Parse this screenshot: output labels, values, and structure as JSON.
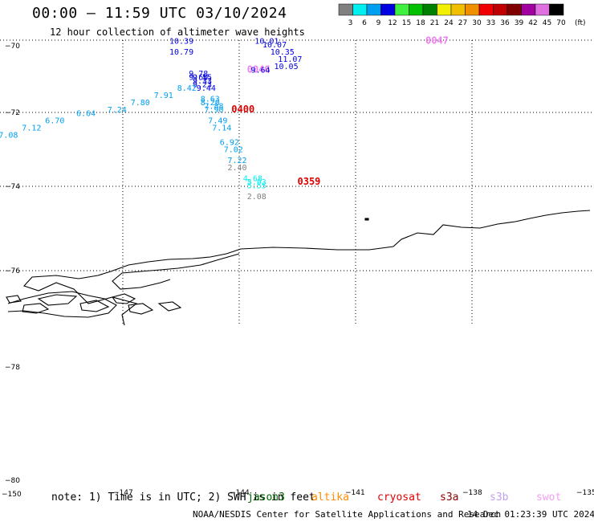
{
  "header": {
    "title": "00:00 — 11:59 UTC 03/10/2024",
    "subtitle": "12 hour collection of altimeter wave heights"
  },
  "colorbar": {
    "labels": [
      "3",
      "6",
      "9",
      "12",
      "15",
      "18",
      "21",
      "24",
      "27",
      "30",
      "33",
      "36",
      "39",
      "42",
      "45",
      "70"
    ],
    "colors": [
      "#808080",
      "#00f0f0",
      "#00a0f0",
      "#0000e0",
      "#40f040",
      "#00c000",
      "#008000",
      "#f0f000",
      "#f0c000",
      "#f09000",
      "#f00000",
      "#c00000",
      "#800000",
      "#a000a0",
      "#e070e0",
      "#000000"
    ],
    "unit": "(ft)"
  },
  "footer": {
    "note": "note: 1) Time is in UTC; 2) SWH is in feet",
    "satellites": [
      {
        "name": "jason3",
        "color": "#006400"
      },
      {
        "name": "altika",
        "color": "#ff8c00"
      },
      {
        "name": "cryosat",
        "color": "#e00000"
      },
      {
        "name": "s3a",
        "color": "#8b0000"
      },
      {
        "name": "s3b",
        "color": "#c0a0f0"
      },
      {
        "name": "swot",
        "color": "#f0a0f0"
      }
    ],
    "credit": "NOAA/NESDIS Center for Satellite Applications and Research",
    "timestamp": "14 Dec 01:23:39 UTC 2024"
  },
  "chart_data": {
    "type": "scatter",
    "title": "00:00 — 11:59 UTC 03/10/2024",
    "subtitle": "12 hour collection of altimeter wave heights",
    "x_ticks": [
      "−147",
      "−144",
      "−141",
      "−138",
      "−135"
    ],
    "x_ticks_outer": [
      "−150"
    ],
    "y_ticks": [
      "−70",
      "−72",
      "−74",
      "−76",
      "−78",
      "−80"
    ],
    "grid": true,
    "series": [
      {
        "name": "swot",
        "color": "#f080f0",
        "points": [
          {
            "lon": -139.2,
            "lat": -70.1,
            "label": "0047"
          },
          {
            "lon": -143.8,
            "lat": -70.9,
            "label": "0046"
          }
        ]
      },
      {
        "name": "cryosat",
        "color": "#e00000",
        "points": [
          {
            "lon": -144.2,
            "lat": -72.0,
            "label": "0400"
          },
          {
            "lon": -142.5,
            "lat": -74.0,
            "label": "0359"
          }
        ]
      },
      {
        "name": "swh-values",
        "color": "#000000",
        "points": [
          {
            "lon": -143.6,
            "lat": -70.1,
            "swh": 10.01
          },
          {
            "lon": -143.4,
            "lat": -70.2,
            "swh": 10.07
          },
          {
            "lon": -143.2,
            "lat": -70.4,
            "swh": 10.35
          },
          {
            "lon": -143.0,
            "lat": -70.6,
            "swh": 11.07
          },
          {
            "lon": -143.1,
            "lat": -70.8,
            "swh": 10.05
          },
          {
            "lon": -143.7,
            "lat": -70.9,
            "swh": 9.64
          },
          {
            "lon": -145.8,
            "lat": -70.1,
            "swh": 10.39
          },
          {
            "lon": -145.8,
            "lat": -70.4,
            "swh": 10.79
          },
          {
            "lon": -145.3,
            "lat": -71.0,
            "swh": 9.78
          },
          {
            "lon": -145.3,
            "lat": -71.1,
            "swh": 9.6
          },
          {
            "lon": -145.2,
            "lat": -71.1,
            "swh": 9.55
          },
          {
            "lon": -145.2,
            "lat": -71.2,
            "swh": 9.33
          },
          {
            "lon": -145.2,
            "lat": -71.3,
            "swh": 9.23
          },
          {
            "lon": -145.1,
            "lat": -71.4,
            "swh": 9.44
          },
          {
            "lon": -145.6,
            "lat": -71.4,
            "swh": 8.42
          },
          {
            "lon": -146.2,
            "lat": -71.6,
            "swh": 7.91
          },
          {
            "lon": -146.8,
            "lat": -71.8,
            "swh": 7.8
          },
          {
            "lon": -147.4,
            "lat": -72.0,
            "swh": 7.24
          },
          {
            "lon": -148.2,
            "lat": -72.1,
            "swh": 6.64
          },
          {
            "lon": -149.0,
            "lat": -72.3,
            "swh": 6.7
          },
          {
            "lon": -149.6,
            "lat": -72.5,
            "swh": 7.12
          },
          {
            "lon": -150.2,
            "lat": -72.7,
            "swh": 7.08
          },
          {
            "lon": -145.0,
            "lat": -71.7,
            "swh": 8.63
          },
          {
            "lon": -145.0,
            "lat": -71.8,
            "swh": 8.2
          },
          {
            "lon": -144.9,
            "lat": -71.9,
            "swh": 7.88
          },
          {
            "lon": -144.9,
            "lat": -72.0,
            "swh": 7.9
          },
          {
            "lon": -144.8,
            "lat": -72.3,
            "swh": 7.49
          },
          {
            "lon": -144.7,
            "lat": -72.5,
            "swh": 7.14
          },
          {
            "lon": -144.5,
            "lat": -72.9,
            "swh": 6.92
          },
          {
            "lon": -144.4,
            "lat": -73.1,
            "swh": 7.02
          },
          {
            "lon": -144.3,
            "lat": -73.4,
            "swh": 7.22
          },
          {
            "lon": -144.3,
            "lat": -73.6,
            "swh": 2.4
          },
          {
            "lon": -143.9,
            "lat": -73.9,
            "swh": 4.68
          },
          {
            "lon": -143.8,
            "lat": -74.0,
            "swh": 5.03
          },
          {
            "lon": -143.8,
            "lat": -74.1,
            "swh": 5.55
          },
          {
            "lon": -143.8,
            "lat": -74.4,
            "swh": 2.08
          }
        ]
      }
    ]
  }
}
